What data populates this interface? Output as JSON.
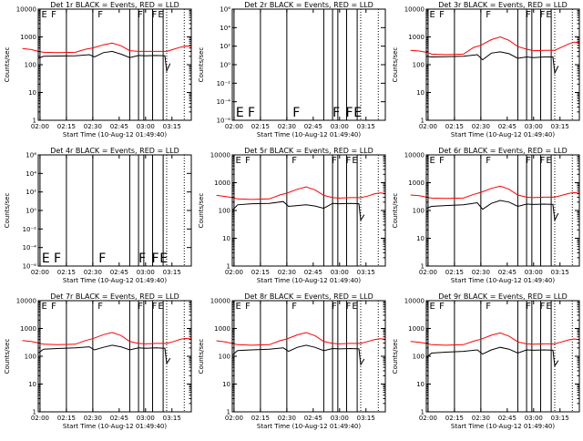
{
  "colors": {
    "events": "#000000",
    "lld": "#ff0000",
    "axis": "#000000",
    "marker": "#000000"
  },
  "common": {
    "ylabel": "Counts/sec",
    "xlabel": "Start Time (10-Aug-12 01:49:40)",
    "xticks": [
      "02:00",
      "02:15",
      "02:30",
      "02:45",
      "03:00",
      "03:15"
    ],
    "xlim_minutes": [
      9,
      96
    ],
    "xtick_minutes": [
      10,
      25,
      40,
      55,
      70,
      85
    ]
  },
  "markers": {
    "solid_lines_min": [
      9,
      10,
      25,
      40,
      61,
      66,
      69,
      74,
      80
    ],
    "dotted_lines_min": [
      82,
      92
    ],
    "flag_labels": [
      {
        "text": "E",
        "x": 10.3
      },
      {
        "text": "F",
        "x": 15.8
      },
      {
        "text": "F",
        "x": 42.3
      },
      {
        "text": "F",
        "x": 65.0
      },
      {
        "text": "F",
        "x": 73.0
      },
      {
        "text": "E",
        "x": 76.5
      }
    ],
    "bad_panel_flag_labels": [
      {
        "text": "E",
        "x": 11
      },
      {
        "text": "F",
        "x": 17.8
      },
      {
        "text": "F",
        "x": 43.3
      },
      {
        "text": "F",
        "x": 66
      },
      {
        "text": "F",
        "x": 73.5
      },
      {
        "text": "E",
        "x": 78
      }
    ]
  },
  "chart_data": [
    {
      "type": "line",
      "title": "Det 1r BLACK = Events, RED = LLD",
      "xlabel": "Start Time (10-Aug-12 01:49:40)",
      "ylabel": "Counts/sec",
      "yscale": "log",
      "ylim": [
        1,
        10000
      ],
      "yticks": [
        "1",
        "10",
        "100",
        "1000",
        "10000"
      ],
      "series": [
        {
          "name": "Events",
          "color": "#000000",
          "x": [
            9,
            12,
            20,
            30,
            38,
            41,
            46,
            51,
            56,
            61,
            66,
            70,
            76,
            81,
            82,
            84
          ],
          "y": [
            170,
            200,
            205,
            210,
            230,
            190,
            270,
            300,
            240,
            180,
            215,
            210,
            215,
            210,
            60,
            110
          ]
        },
        {
          "name": "LLD",
          "color": "#ff0000",
          "x": [
            0,
            5,
            9,
            12,
            20,
            30,
            36,
            40,
            46,
            51,
            56,
            61,
            66,
            70,
            76,
            82,
            86,
            90,
            93,
            96
          ],
          "y": [
            380,
            350,
            300,
            280,
            270,
            280,
            360,
            400,
            520,
            600,
            480,
            320,
            300,
            300,
            300,
            300,
            360,
            430,
            470,
            460
          ]
        }
      ]
    },
    {
      "type": "line",
      "title": "Det 2r BLACK = Events, RED = LLD",
      "xlabel": "Start Time (10-Aug-12 01:49:40)",
      "ylabel": "Counts/sec",
      "yscale": "log",
      "ylim": [
        1e-06,
        1000000
      ],
      "yticks": [
        "10⁻⁶",
        "10⁻⁴",
        "10⁻²",
        "10⁰",
        "10²",
        "10⁴",
        "10⁶"
      ],
      "yticks_inverted": true,
      "flags_panel": true,
      "series": []
    },
    {
      "type": "line",
      "title": "Det 3r BLACK = Events, RED = LLD",
      "xlabel": "Start Time (10-Aug-12 01:49:40)",
      "ylabel": "Counts/sec",
      "yscale": "log",
      "ylim": [
        1,
        10000
      ],
      "yticks": [
        "1",
        "10",
        "100",
        "1000",
        "10000"
      ],
      "series": [
        {
          "name": "Events",
          "color": "#000000",
          "x": [
            9,
            12,
            20,
            30,
            38,
            41,
            46,
            51,
            56,
            61,
            66,
            70,
            76,
            81,
            82,
            84
          ],
          "y": [
            200,
            190,
            195,
            200,
            230,
            150,
            260,
            290,
            250,
            170,
            190,
            180,
            190,
            190,
            50,
            90
          ]
        },
        {
          "name": "LLD",
          "color": "#ff0000",
          "x": [
            0,
            5,
            9,
            12,
            20,
            30,
            36,
            40,
            46,
            51,
            56,
            61,
            66,
            70,
            76,
            82,
            86,
            90,
            93,
            96
          ],
          "y": [
            330,
            310,
            280,
            240,
            230,
            240,
            420,
            500,
            800,
            1000,
            750,
            450,
            360,
            320,
            330,
            330,
            430,
            560,
            650,
            620
          ]
        }
      ]
    },
    {
      "type": "line",
      "title": "Det 4r BLACK = Events, RED = LLD",
      "xlabel": "Start Time (10-Aug-12 01:49:40)",
      "ylabel": "Counts/sec",
      "yscale": "log",
      "ylim": [
        1e-06,
        1000000
      ],
      "yticks": [
        "10⁻⁶",
        "10⁻⁴",
        "10⁻²",
        "10⁰",
        "10²",
        "10⁴",
        "10⁶"
      ],
      "yticks_inverted": true,
      "flags_panel": true,
      "series": []
    },
    {
      "type": "line",
      "title": "Det 5r BLACK = Events, RED = LLD",
      "xlabel": "Start Time (10-Aug-12 01:49:40)",
      "ylabel": "Counts/sec",
      "yscale": "log",
      "ylim": [
        1,
        10000
      ],
      "yticks": [
        "1",
        "10",
        "100",
        "1000",
        "10000"
      ],
      "series": [
        {
          "name": "Events",
          "color": "#000000",
          "x": [
            9,
            12,
            20,
            30,
            38,
            41,
            46,
            51,
            56,
            61,
            66,
            70,
            76,
            81,
            82,
            84
          ],
          "y": [
            100,
            160,
            175,
            180,
            210,
            140,
            150,
            160,
            145,
            120,
            180,
            175,
            180,
            175,
            45,
            70
          ]
        },
        {
          "name": "LLD",
          "color": "#ff0000",
          "x": [
            0,
            5,
            9,
            12,
            20,
            30,
            36,
            40,
            46,
            51,
            56,
            61,
            66,
            70,
            76,
            82,
            86,
            90,
            93,
            96
          ],
          "y": [
            350,
            320,
            290,
            260,
            250,
            260,
            360,
            420,
            580,
            700,
            550,
            350,
            290,
            280,
            290,
            290,
            330,
            400,
            430,
            410
          ]
        }
      ]
    },
    {
      "type": "line",
      "title": "Det 6r BLACK = Events, RED = LLD",
      "xlabel": "Start Time (10-Aug-12 01:49:40)",
      "ylabel": "Counts/sec",
      "yscale": "log",
      "ylim": [
        1,
        10000
      ],
      "yticks": [
        "1",
        "10",
        "100",
        "1000",
        "10000"
      ],
      "series": [
        {
          "name": "Events",
          "color": "#000000",
          "x": [
            9,
            12,
            20,
            30,
            38,
            41,
            46,
            51,
            56,
            61,
            66,
            70,
            76,
            81,
            82,
            84
          ],
          "y": [
            120,
            140,
            150,
            160,
            190,
            110,
            180,
            230,
            200,
            140,
            170,
            165,
            170,
            165,
            45,
            80
          ]
        },
        {
          "name": "LLD",
          "color": "#ff0000",
          "x": [
            0,
            5,
            9,
            12,
            20,
            30,
            36,
            40,
            46,
            51,
            56,
            61,
            66,
            70,
            76,
            82,
            86,
            90,
            93,
            96
          ],
          "y": [
            360,
            340,
            300,
            280,
            270,
            280,
            380,
            450,
            620,
            750,
            580,
            360,
            300,
            290,
            300,
            300,
            350,
            410,
            440,
            420
          ]
        }
      ]
    },
    {
      "type": "line",
      "title": "Det 7r BLACK = Events, RED = LLD",
      "xlabel": "Start Time (10-Aug-12 01:49:40)",
      "ylabel": "Counts/sec",
      "yscale": "log",
      "ylim": [
        1,
        10000
      ],
      "yticks": [
        "1",
        "10",
        "100",
        "1000",
        "10000"
      ],
      "series": [
        {
          "name": "Events",
          "color": "#000000",
          "x": [
            9,
            12,
            20,
            30,
            38,
            41,
            46,
            51,
            56,
            61,
            66,
            70,
            76,
            81,
            82,
            84
          ],
          "y": [
            130,
            180,
            190,
            200,
            220,
            170,
            210,
            250,
            220,
            170,
            200,
            195,
            200,
            195,
            55,
            85
          ]
        },
        {
          "name": "LLD",
          "color": "#ff0000",
          "x": [
            0,
            5,
            9,
            12,
            20,
            30,
            36,
            40,
            46,
            51,
            56,
            61,
            66,
            70,
            76,
            82,
            86,
            90,
            93,
            96
          ],
          "y": [
            370,
            340,
            300,
            270,
            260,
            270,
            370,
            430,
            600,
            720,
            560,
            340,
            290,
            280,
            290,
            290,
            340,
            410,
            440,
            420
          ]
        }
      ]
    },
    {
      "type": "line",
      "title": "Det 8r BLACK = Events, RED = LLD",
      "xlabel": "Start Time (10-Aug-12 01:49:40)",
      "ylabel": "Counts/sec",
      "yscale": "log",
      "ylim": [
        1,
        10000
      ],
      "yticks": [
        "1",
        "10",
        "100",
        "1000",
        "10000"
      ],
      "series": [
        {
          "name": "Events",
          "color": "#000000",
          "x": [
            9,
            12,
            20,
            30,
            38,
            41,
            46,
            51,
            56,
            61,
            66,
            70,
            76,
            81,
            82,
            84
          ],
          "y": [
            110,
            160,
            170,
            180,
            200,
            150,
            210,
            250,
            210,
            160,
            190,
            185,
            190,
            185,
            50,
            80
          ]
        },
        {
          "name": "LLD",
          "color": "#ff0000",
          "x": [
            0,
            5,
            9,
            12,
            20,
            30,
            36,
            40,
            46,
            51,
            56,
            61,
            66,
            70,
            76,
            82,
            86,
            90,
            93,
            96
          ],
          "y": [
            360,
            330,
            290,
            260,
            250,
            260,
            360,
            420,
            590,
            710,
            550,
            340,
            290,
            280,
            290,
            290,
            340,
            400,
            430,
            410
          ]
        }
      ]
    },
    {
      "type": "line",
      "title": "Det 9r BLACK = Events, RED = LLD",
      "xlabel": "Start Time (10-Aug-12 01:49:40)",
      "ylabel": "Counts/sec",
      "yscale": "log",
      "ylim": [
        1,
        10000
      ],
      "yticks": [
        "1",
        "10",
        "100",
        "1000",
        "10000"
      ],
      "series": [
        {
          "name": "Events",
          "color": "#000000",
          "x": [
            9,
            12,
            20,
            30,
            38,
            41,
            46,
            51,
            56,
            61,
            66,
            70,
            76,
            81,
            82,
            84
          ],
          "y": [
            90,
            130,
            140,
            150,
            170,
            120,
            170,
            210,
            180,
            130,
            170,
            165,
            170,
            165,
            45,
            70
          ]
        },
        {
          "name": "LLD",
          "color": "#ff0000",
          "x": [
            0,
            5,
            9,
            12,
            20,
            30,
            36,
            40,
            46,
            51,
            56,
            61,
            66,
            70,
            76,
            82,
            86,
            90,
            93,
            96
          ],
          "y": [
            340,
            320,
            290,
            260,
            250,
            260,
            350,
            410,
            570,
            690,
            530,
            330,
            280,
            270,
            280,
            280,
            330,
            390,
            420,
            400
          ]
        }
      ]
    }
  ]
}
